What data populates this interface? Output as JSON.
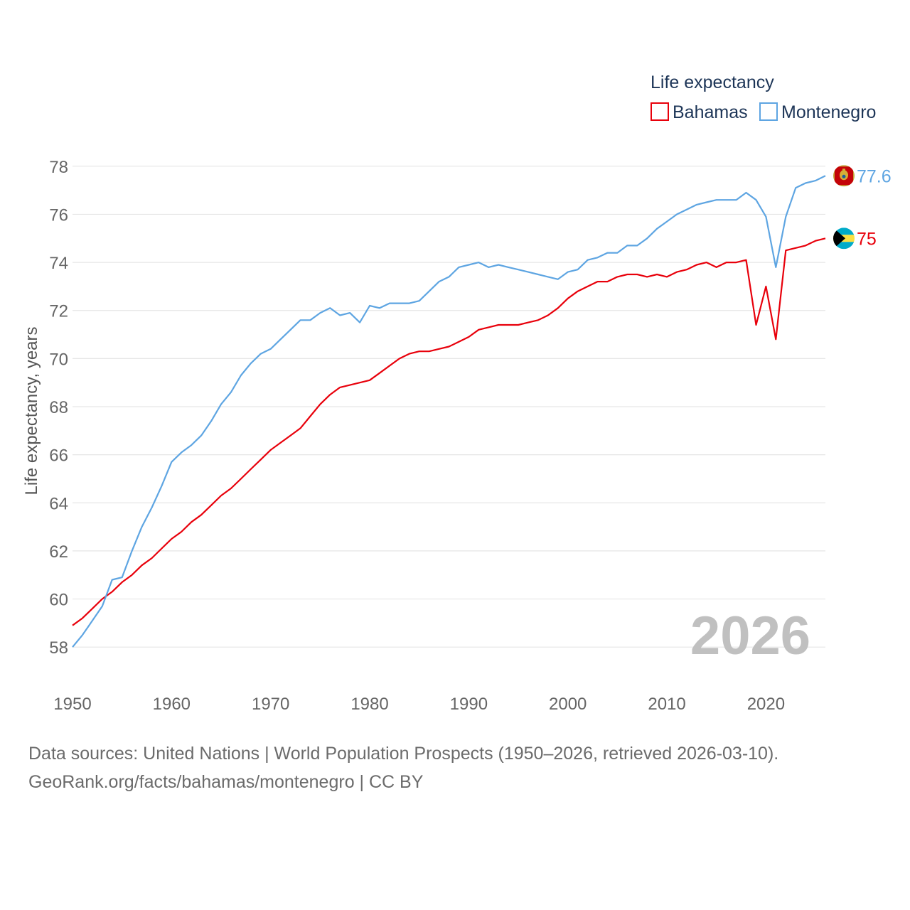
{
  "chart_data": {
    "type": "line",
    "title": "Life expectancy",
    "ylabel": "Life expectancy, years",
    "xlabel": "",
    "xlim": [
      1950,
      2026
    ],
    "ylim": [
      57,
      79
    ],
    "x_ticks": [
      1950,
      1960,
      1970,
      1980,
      1990,
      2000,
      2010,
      2020
    ],
    "y_ticks": [
      58,
      60,
      62,
      64,
      66,
      68,
      70,
      72,
      74,
      76,
      78
    ],
    "grid": "horizontal",
    "legend_position": "top-right",
    "watermark_year": "2026",
    "series": [
      {
        "name": "Bahamas",
        "color": "#e8000b",
        "end_label": "75",
        "flag": "bahamas-flag",
        "x": [
          1950,
          1951,
          1952,
          1953,
          1954,
          1955,
          1956,
          1957,
          1958,
          1959,
          1960,
          1961,
          1962,
          1963,
          1964,
          1965,
          1966,
          1967,
          1968,
          1969,
          1970,
          1971,
          1972,
          1973,
          1974,
          1975,
          1976,
          1977,
          1978,
          1979,
          1980,
          1981,
          1982,
          1983,
          1984,
          1985,
          1986,
          1987,
          1988,
          1989,
          1990,
          1991,
          1992,
          1993,
          1994,
          1995,
          1996,
          1997,
          1998,
          1999,
          2000,
          2001,
          2002,
          2003,
          2004,
          2005,
          2006,
          2007,
          2008,
          2009,
          2010,
          2011,
          2012,
          2013,
          2014,
          2015,
          2016,
          2017,
          2018,
          2019,
          2020,
          2021,
          2022,
          2023,
          2024,
          2025,
          2026
        ],
        "values": [
          58.9,
          59.2,
          59.6,
          60.0,
          60.3,
          60.7,
          61.0,
          61.4,
          61.7,
          62.1,
          62.5,
          62.8,
          63.2,
          63.5,
          63.9,
          64.3,
          64.6,
          65.0,
          65.4,
          65.8,
          66.2,
          66.5,
          66.8,
          67.1,
          67.6,
          68.1,
          68.5,
          68.8,
          68.9,
          69.0,
          69.1,
          69.4,
          69.7,
          70.0,
          70.2,
          70.3,
          70.3,
          70.4,
          70.5,
          70.7,
          70.9,
          71.2,
          71.3,
          71.4,
          71.4,
          71.4,
          71.5,
          71.6,
          71.8,
          72.1,
          72.5,
          72.8,
          73.0,
          73.2,
          73.2,
          73.4,
          73.5,
          73.5,
          73.4,
          73.5,
          73.4,
          73.6,
          73.7,
          73.9,
          74.0,
          73.8,
          74.0,
          74.0,
          74.1,
          71.4,
          73.0,
          70.8,
          74.5,
          74.6,
          74.7,
          74.9,
          75.0
        ]
      },
      {
        "name": "Montenegro",
        "color": "#5ea5e2",
        "end_label": "77.6",
        "flag": "montenegro-flag",
        "x": [
          1950,
          1951,
          1952,
          1953,
          1954,
          1955,
          1956,
          1957,
          1958,
          1959,
          1960,
          1961,
          1962,
          1963,
          1964,
          1965,
          1966,
          1967,
          1968,
          1969,
          1970,
          1971,
          1972,
          1973,
          1974,
          1975,
          1976,
          1977,
          1978,
          1979,
          1980,
          1981,
          1982,
          1983,
          1984,
          1985,
          1986,
          1987,
          1988,
          1989,
          1990,
          1991,
          1992,
          1993,
          1994,
          1995,
          1996,
          1997,
          1998,
          1999,
          2000,
          2001,
          2002,
          2003,
          2004,
          2005,
          2006,
          2007,
          2008,
          2009,
          2010,
          2011,
          2012,
          2013,
          2014,
          2015,
          2016,
          2017,
          2018,
          2019,
          2020,
          2021,
          2022,
          2023,
          2024,
          2025,
          2026
        ],
        "values": [
          58.0,
          58.5,
          59.1,
          59.7,
          60.8,
          60.9,
          62.0,
          63.0,
          63.8,
          64.7,
          65.7,
          66.1,
          66.4,
          66.8,
          67.4,
          68.1,
          68.6,
          69.3,
          69.8,
          70.2,
          70.4,
          70.8,
          71.2,
          71.6,
          71.6,
          71.9,
          72.1,
          71.8,
          71.9,
          71.5,
          72.2,
          72.1,
          72.3,
          72.3,
          72.3,
          72.4,
          72.8,
          73.2,
          73.4,
          73.8,
          73.9,
          74.0,
          73.8,
          73.9,
          73.8,
          73.7,
          73.6,
          73.5,
          73.4,
          73.3,
          73.6,
          73.7,
          74.1,
          74.2,
          74.4,
          74.4,
          74.7,
          74.7,
          75.0,
          75.4,
          75.7,
          76.0,
          76.2,
          76.4,
          76.5,
          76.6,
          76.6,
          76.6,
          76.9,
          76.6,
          75.9,
          73.8,
          75.9,
          77.1,
          77.3,
          77.4,
          77.6
        ]
      }
    ]
  },
  "footer": {
    "source_line": "Data sources: United Nations | World Population Prospects (1950–2026, retrieved 2026-03-10).",
    "attribution_line": "GeoRank.org/facts/bahamas/montenegro | CC BY"
  }
}
